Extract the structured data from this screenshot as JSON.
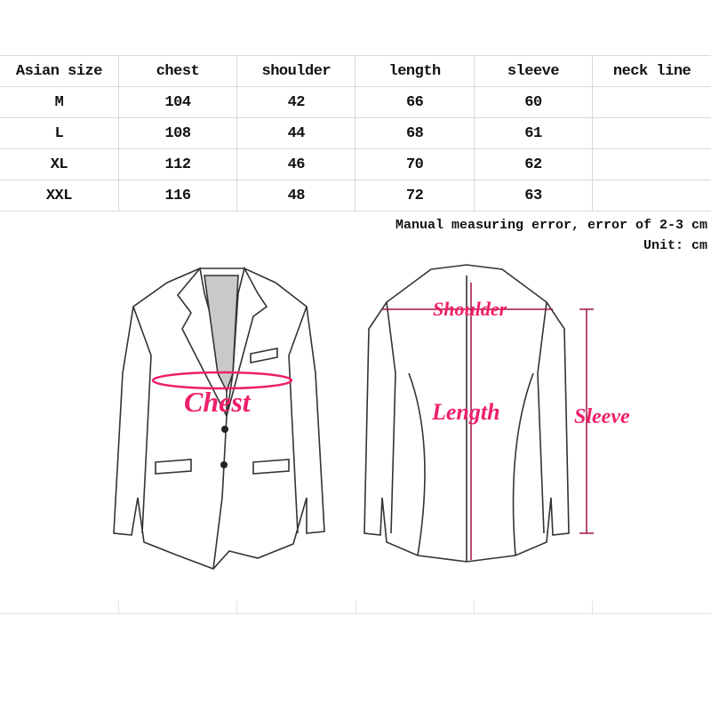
{
  "size_table": {
    "headers": [
      "Asian size",
      "chest",
      "shoulder",
      "length",
      "sleeve",
      "neck line"
    ],
    "rows": [
      [
        "M",
        "104",
        "42",
        "66",
        "60",
        ""
      ],
      [
        "L",
        "108",
        "44",
        "68",
        "61",
        ""
      ],
      [
        "XL",
        "112",
        "46",
        "70",
        "62",
        ""
      ],
      [
        "XXL",
        "116",
        "48",
        "72",
        "63",
        ""
      ]
    ]
  },
  "notes": {
    "error": "Manual measuring error, error of 2-3 cm",
    "unit": "Unit: cm"
  },
  "diagram": {
    "front_label": "Chest",
    "back_labels": {
      "shoulder": "Shoulder",
      "length": "Length",
      "sleeve": "Sleeve"
    },
    "accent_color": "#ee1f6b"
  }
}
